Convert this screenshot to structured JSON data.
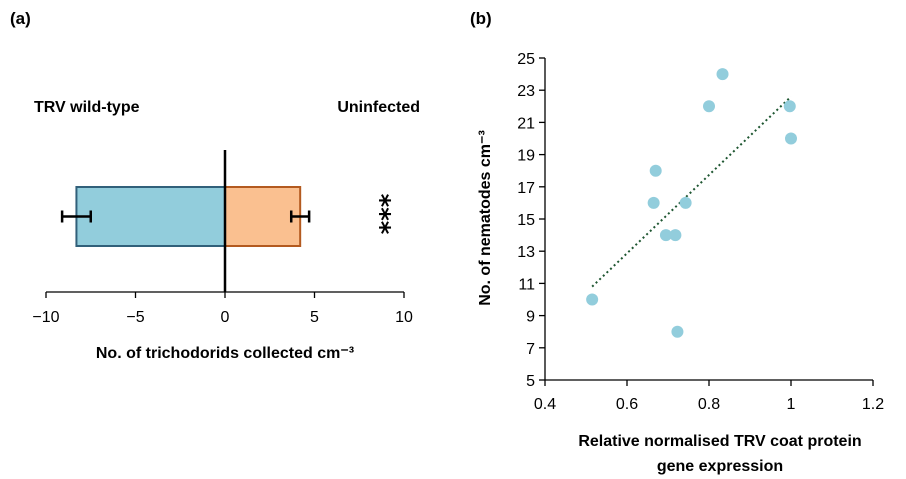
{
  "chart_data": [
    {
      "panel": "(a)",
      "type": "bar",
      "orientation": "horizontal",
      "xlabel": "No. of trichodorids collected cm⁻³",
      "xlim": [
        -10,
        10
      ],
      "xticks": [
        -10,
        -5,
        0,
        5,
        10
      ],
      "xtick_labels": [
        "−10",
        "−5",
        "0",
        "5",
        "10"
      ],
      "annotations": {
        "left": "TRV wild-type",
        "right": "Uninfected",
        "significance": "***"
      },
      "series": [
        {
          "value": -8.3,
          "error": 0.8,
          "color": "#92cddc",
          "stroke": "#31607a"
        },
        {
          "value": 4.2,
          "error": 0.5,
          "color": "#fac090",
          "stroke": "#b35a1f"
        }
      ],
      "grid": false
    },
    {
      "panel": "(b)",
      "type": "scatter",
      "xlabel": "Relative normalised TRV coat protein gene expression",
      "ylabel": "No. of nematodes cm⁻³",
      "xlim": [
        0.4,
        1.2
      ],
      "ylim": [
        5,
        25
      ],
      "xticks": [
        0.4,
        0.6,
        0.8,
        1,
        1.2
      ],
      "xtick_labels": [
        "0.4",
        "0.6",
        "0.8",
        "1",
        "1.2"
      ],
      "yticks": [
        5,
        7,
        9,
        11,
        13,
        15,
        17,
        19,
        21,
        23,
        25
      ],
      "points": [
        {
          "x": 0.515,
          "y": 10
        },
        {
          "x": 0.665,
          "y": 16
        },
        {
          "x": 0.67,
          "y": 18
        },
        {
          "x": 0.695,
          "y": 14
        },
        {
          "x": 0.718,
          "y": 14
        },
        {
          "x": 0.723,
          "y": 8
        },
        {
          "x": 0.743,
          "y": 16
        },
        {
          "x": 0.8,
          "y": 22
        },
        {
          "x": 0.833,
          "y": 24
        },
        {
          "x": 0.997,
          "y": 22
        },
        {
          "x": 1.0,
          "y": 20
        }
      ],
      "trendline": {
        "x": [
          0.515,
          1.0
        ],
        "y": [
          10.8,
          22.6
        ],
        "style": "dotted",
        "color": "#1e5631"
      },
      "point_color": "#92cddc",
      "grid": false
    }
  ]
}
